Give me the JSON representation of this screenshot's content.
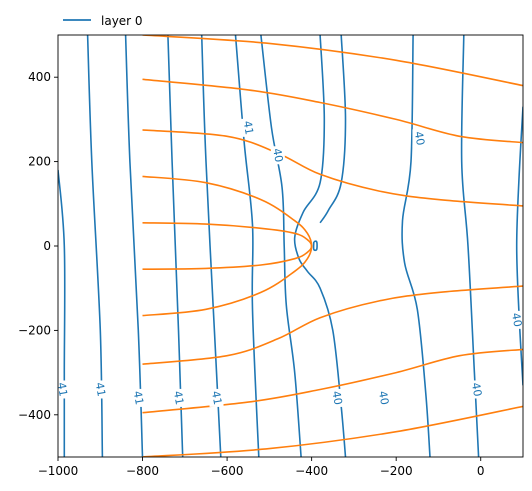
{
  "chart_data": {
    "type": "line",
    "title": "",
    "xlabel": "",
    "ylabel": "",
    "xlim": [
      -1000,
      100
    ],
    "ylim": [
      -500,
      500
    ],
    "x_ticks": [
      -1000,
      -800,
      -600,
      -400,
      -200,
      0
    ],
    "y_ticks": [
      -400,
      -200,
      0,
      200,
      400
    ],
    "grid": false,
    "legend": {
      "placement": "top-left",
      "entries": [
        {
          "label": "layer 0",
          "color": "#1f77b4"
        }
      ]
    },
    "colors": {
      "head_contours": "#1f77b4",
      "flow_lines": "#ff7f0e"
    },
    "contour_labels": [
      {
        "text": "41",
        "x": -990,
        "y": -340
      },
      {
        "text": "41",
        "x": -900,
        "y": -340
      },
      {
        "text": "41",
        "x": -810,
        "y": -360
      },
      {
        "text": "41",
        "x": -715,
        "y": -360
      },
      {
        "text": "41",
        "x": -625,
        "y": -360
      },
      {
        "text": "41",
        "x": -550,
        "y": 280
      },
      {
        "text": "40",
        "x": -480,
        "y": 215
      },
      {
        "text": "40",
        "x": -340,
        "y": -360
      },
      {
        "text": "40",
        "x": -230,
        "y": -360
      },
      {
        "text": "40",
        "x": -145,
        "y": 255
      },
      {
        "text": "40",
        "x": -10,
        "y": -340
      },
      {
        "text": "40",
        "x": 85,
        "y": -175
      }
    ],
    "head_contours": [
      {
        "points": [
          [
            -1000,
            180
          ],
          [
            -985,
            0
          ],
          [
            -985,
            -300
          ],
          [
            -985,
            -500
          ]
        ]
      },
      {
        "points": [
          [
            -930,
            500
          ],
          [
            -920,
            200
          ],
          [
            -900,
            -200
          ],
          [
            -895,
            -500
          ]
        ]
      },
      {
        "points": [
          [
            -840,
            500
          ],
          [
            -830,
            200
          ],
          [
            -810,
            -200
          ],
          [
            -800,
            -500
          ]
        ]
      },
      {
        "points": [
          [
            -740,
            500
          ],
          [
            -730,
            200
          ],
          [
            -715,
            -200
          ],
          [
            -705,
            -500
          ]
        ]
      },
      {
        "points": [
          [
            -660,
            500
          ],
          [
            -650,
            200
          ],
          [
            -630,
            -200
          ],
          [
            -615,
            -500
          ]
        ]
      },
      {
        "points": [
          [
            -580,
            500
          ],
          [
            -560,
            250
          ],
          [
            -540,
            50
          ],
          [
            -540,
            -150
          ],
          [
            -525,
            -500
          ]
        ]
      },
      {
        "points": [
          [
            -520,
            500
          ],
          [
            -495,
            280
          ],
          [
            -470,
            140
          ],
          [
            -465,
            0
          ],
          [
            -460,
            -140
          ],
          [
            -440,
            -300
          ],
          [
            -425,
            -500
          ]
        ]
      },
      {
        "points": [
          [
            -380,
            500
          ],
          [
            -370,
            300
          ],
          [
            -380,
            150
          ],
          [
            -420,
            80
          ],
          [
            -440,
            20
          ],
          [
            -430,
            -30
          ],
          [
            -410,
            -60
          ],
          [
            -380,
            -100
          ],
          [
            -350,
            -200
          ],
          [
            -330,
            -380
          ],
          [
            -320,
            -500
          ]
        ]
      },
      {
        "points": [
          [
            -330,
            500
          ],
          [
            -320,
            300
          ],
          [
            -330,
            150
          ],
          [
            -360,
            85
          ],
          [
            -380,
            55
          ]
        ]
      },
      {
        "points": [
          [
            -395,
            10
          ],
          [
            -388,
            10
          ],
          [
            -388,
            -8
          ],
          [
            -395,
            -8
          ],
          [
            -395,
            10
          ]
        ]
      },
      {
        "points": [
          [
            -160,
            500
          ],
          [
            -165,
            200
          ],
          [
            -185,
            60
          ],
          [
            -180,
            -40
          ],
          [
            -150,
            -150
          ],
          [
            -130,
            -350
          ],
          [
            -120,
            -500
          ]
        ]
      },
      {
        "points": [
          [
            -40,
            500
          ],
          [
            -45,
            200
          ],
          [
            -30,
            0
          ],
          [
            -15,
            -300
          ],
          [
            -5,
            -500
          ]
        ]
      },
      {
        "points": [
          [
            100,
            330
          ],
          [
            90,
            150
          ],
          [
            85,
            0
          ],
          [
            90,
            -150
          ],
          [
            100,
            -330
          ]
        ]
      }
    ],
    "flow_lines": [
      {
        "points": [
          [
            -800,
            500
          ],
          [
            -500,
            480
          ],
          [
            -200,
            440
          ],
          [
            100,
            380
          ]
        ]
      },
      {
        "points": [
          [
            -800,
            395
          ],
          [
            -550,
            370
          ],
          [
            -380,
            340
          ],
          [
            -200,
            300
          ],
          [
            -50,
            260
          ],
          [
            100,
            245
          ]
        ]
      },
      {
        "points": [
          [
            -800,
            275
          ],
          [
            -600,
            260
          ],
          [
            -480,
            220
          ],
          [
            -380,
            170
          ],
          [
            -240,
            130
          ],
          [
            -100,
            110
          ],
          [
            100,
            95
          ]
        ]
      },
      {
        "points": [
          [
            -800,
            165
          ],
          [
            -650,
            150
          ],
          [
            -520,
            110
          ],
          [
            -440,
            60
          ],
          [
            -410,
            30
          ],
          [
            -400,
            0
          ],
          [
            -410,
            -30
          ],
          [
            -440,
            -60
          ],
          [
            -520,
            -110
          ],
          [
            -650,
            -150
          ],
          [
            -800,
            -165
          ]
        ]
      },
      {
        "points": [
          [
            -800,
            55
          ],
          [
            -650,
            52
          ],
          [
            -520,
            42
          ],
          [
            -440,
            30
          ],
          [
            -410,
            15
          ],
          [
            -400,
            0
          ],
          [
            -410,
            -15
          ],
          [
            -440,
            -30
          ],
          [
            -520,
            -45
          ],
          [
            -650,
            -53
          ],
          [
            -800,
            -55
          ]
        ]
      },
      {
        "points": [
          [
            -800,
            -280
          ],
          [
            -600,
            -260
          ],
          [
            -480,
            -220
          ],
          [
            -380,
            -170
          ],
          [
            -240,
            -130
          ],
          [
            -100,
            -110
          ],
          [
            100,
            -95
          ]
        ]
      },
      {
        "points": [
          [
            -800,
            -395
          ],
          [
            -550,
            -370
          ],
          [
            -380,
            -340
          ],
          [
            -200,
            -300
          ],
          [
            -50,
            -260
          ],
          [
            100,
            -245
          ]
        ]
      },
      {
        "points": [
          [
            -800,
            -500
          ],
          [
            -500,
            -480
          ],
          [
            -200,
            -440
          ],
          [
            100,
            -380
          ]
        ]
      }
    ]
  }
}
